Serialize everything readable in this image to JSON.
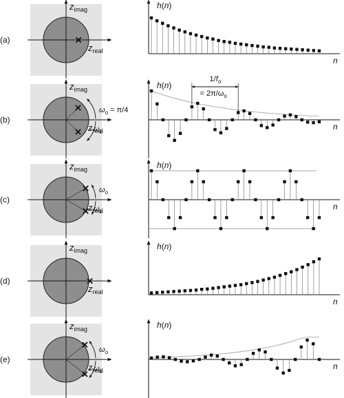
{
  "rows": [
    {
      "label": "(a)",
      "z_plane": {
        "imag_axis_label": "z",
        "imag_axis_sub": "imag",
        "real_axis_label": "z",
        "real_axis_sub": "real",
        "poles": [
          {
            "angle_deg": 0,
            "radius": 0.55
          }
        ],
        "annotations": []
      },
      "impulse_response": {
        "y_label": "h(n)",
        "x_label": "n",
        "values": [
          1.0,
          0.92,
          0.85,
          0.78,
          0.72,
          0.66,
          0.61,
          0.56,
          0.52,
          0.48,
          0.44,
          0.41,
          0.37,
          0.34,
          0.32,
          0.29,
          0.27,
          0.25,
          0.23,
          0.21,
          0.19,
          0.18,
          0.16,
          0.15,
          0.14,
          0.13,
          0.12,
          0.11,
          0.1,
          0.09,
          0.08
        ],
        "envelope": false,
        "guides": false,
        "period_annotation": null
      }
    },
    {
      "label": "(b)",
      "z_plane": {
        "imag_axis_label": "z",
        "imag_axis_sub": "imag",
        "real_axis_label": "z",
        "real_axis_sub": "real",
        "poles": [
          {
            "angle_deg": 45,
            "radius": 0.75
          },
          {
            "angle_deg": -45,
            "radius": 0.75
          }
        ],
        "annotations": [
          "ω",
          "o",
          " = π/4",
          "–ω",
          "o"
        ]
      },
      "impulse_response": {
        "y_label": "h(n)",
        "x_label": "n",
        "values": [
          1.0,
          0.55,
          0.0,
          -0.55,
          -0.71,
          -0.47,
          0.0,
          0.45,
          0.57,
          0.38,
          0.0,
          -0.34,
          -0.45,
          -0.3,
          0.0,
          0.25,
          0.31,
          0.22,
          0.0,
          -0.2,
          -0.27,
          -0.18,
          0.0,
          0.13,
          0.17,
          0.11,
          0.0,
          -0.08,
          -0.1,
          -0.07
        ],
        "envelope": "decay",
        "guides": false,
        "period_annotation": [
          "1/",
          "f",
          "o",
          "= 2π/ω",
          "o"
        ]
      }
    },
    {
      "label": "(c)",
      "z_plane": {
        "imag_axis_label": "z",
        "imag_axis_sub": "imag",
        "real_axis_label": "z",
        "real_axis_sub": "real",
        "poles": [
          {
            "angle_deg": 30,
            "radius": 1.0
          },
          {
            "angle_deg": -30,
            "radius": 1.0
          }
        ],
        "annotations": [
          "ω",
          "o",
          "–ω",
          "o"
        ]
      },
      "impulse_response": {
        "y_label": "h(n)",
        "x_label": "n",
        "values": [
          1.0,
          0.62,
          0.0,
          -0.62,
          -1.0,
          -0.62,
          0.0,
          0.62,
          1.0,
          0.62,
          0.0,
          -0.62,
          -1.0,
          -0.62,
          0.0,
          0.62,
          1.0,
          0.62,
          0.0,
          -0.62,
          -1.0,
          -0.62,
          0.0,
          0.62,
          1.0,
          0.62,
          0.0,
          -0.62,
          -1.0,
          -0.62
        ],
        "envelope": false,
        "guides": true,
        "period_annotation": null
      }
    },
    {
      "label": "(d)",
      "z_plane": {
        "imag_axis_label": "z",
        "imag_axis_sub": "imag",
        "real_axis_label": "z",
        "real_axis_sub": "real",
        "poles": [
          {
            "angle_deg": 0,
            "radius": 1.05
          }
        ],
        "annotations": []
      },
      "impulse_response": {
        "y_label": "h(n)",
        "x_label": "n",
        "values": [
          0.05,
          0.06,
          0.07,
          0.08,
          0.09,
          0.1,
          0.11,
          0.12,
          0.13,
          0.15,
          0.16,
          0.18,
          0.2,
          0.22,
          0.24,
          0.26,
          0.28,
          0.31,
          0.34,
          0.37,
          0.41,
          0.45,
          0.49,
          0.54,
          0.59,
          0.64,
          0.7,
          0.77,
          0.84,
          0.92,
          1.0
        ],
        "envelope": false,
        "guides": false,
        "period_annotation": null
      }
    },
    {
      "label": "(e)",
      "z_plane": {
        "imag_axis_label": "z",
        "imag_axis_sub": "imag",
        "real_axis_label": "z",
        "real_axis_sub": "real",
        "poles": [
          {
            "angle_deg": 38,
            "radius": 1.05
          },
          {
            "angle_deg": -38,
            "radius": 1.05
          }
        ],
        "annotations": [
          "ω",
          "o",
          "–ω",
          "o"
        ]
      },
      "impulse_response": {
        "y_label": "h(n)",
        "x_label": "n",
        "values": [
          0.05,
          0.08,
          0.09,
          0.06,
          0.0,
          -0.06,
          -0.08,
          -0.05,
          0.0,
          0.08,
          0.15,
          0.12,
          0.0,
          -0.12,
          -0.22,
          -0.18,
          0.0,
          0.21,
          0.33,
          0.26,
          0.0,
          -0.3,
          -0.47,
          -0.38,
          0.0,
          0.43,
          0.67,
          0.54,
          0.0
        ],
        "envelope": "grow",
        "guides": false,
        "period_annotation": null
      }
    }
  ]
}
